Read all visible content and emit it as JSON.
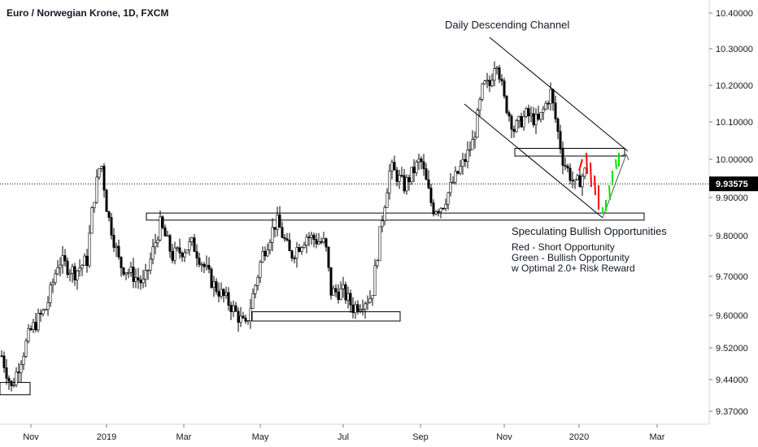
{
  "header": {
    "title": "Euro / Norwegian Krone, 1D, FXCM"
  },
  "colors": {
    "bull": "#ffffff",
    "bear": "#000000",
    "outline": "#000000",
    "short_signal": "#ff0000",
    "long_signal": "#00e600",
    "axis_text": "#131722",
    "price_tag_bg": "#000000"
  },
  "chart_data": {
    "type": "candlestick",
    "title": "Euro / Norwegian Krone, 1D, FXCM",
    "x_ticks": [
      "Nov",
      "2019",
      "Mar",
      "May",
      "Jul",
      "Sep",
      "Nov",
      "2020",
      "Mar"
    ],
    "y_ticks": [
      "10.40000",
      "10.30000",
      "10.20000",
      "10.10000",
      "10.00000",
      "9.90000",
      "9.80000",
      "9.70000",
      "9.60000",
      "9.52000",
      "9.44000",
      "9.37000"
    ],
    "current_price": "9.93575",
    "annotations": {
      "channel_label": "Daily Descending Channel",
      "speculating": "Speculating Bullish Opportunities",
      "legend_lines": [
        "Red - Short Opportunity",
        "Green - Bullish Opportunity",
        "w Optimal 2.0+ Risk Reward"
      ]
    },
    "levels": [
      {
        "name": "support-zone-major",
        "low": 9.845,
        "high": 9.855
      },
      {
        "name": "support-zone-may-jul",
        "low": 9.59,
        "high": 9.605
      },
      {
        "name": "support-zone-oct",
        "low": 9.41,
        "high": 9.43
      },
      {
        "name": "resistance-zone-dec",
        "low": 10.013,
        "high": 10.025
      }
    ],
    "anchors": [
      {
        "t": 0,
        "p": 9.5
      },
      {
        "t": 12,
        "p": 9.42
      },
      {
        "t": 35,
        "p": 9.56
      },
      {
        "t": 55,
        "p": 9.62
      },
      {
        "t": 70,
        "p": 9.74
      },
      {
        "t": 90,
        "p": 9.71
      },
      {
        "t": 105,
        "p": 9.74
      },
      {
        "t": 112,
        "p": 9.88
      },
      {
        "t": 122,
        "p": 10.0
      },
      {
        "t": 130,
        "p": 9.86
      },
      {
        "t": 145,
        "p": 9.73
      },
      {
        "t": 175,
        "p": 9.68
      },
      {
        "t": 195,
        "p": 9.83
      },
      {
        "t": 210,
        "p": 9.75
      },
      {
        "t": 235,
        "p": 9.78
      },
      {
        "t": 260,
        "p": 9.68
      },
      {
        "t": 280,
        "p": 9.63
      },
      {
        "t": 300,
        "p": 9.57
      },
      {
        "t": 320,
        "p": 9.75
      },
      {
        "t": 338,
        "p": 9.84
      },
      {
        "t": 355,
        "p": 9.75
      },
      {
        "t": 375,
        "p": 9.8
      },
      {
        "t": 398,
        "p": 9.78
      },
      {
        "t": 405,
        "p": 9.66
      },
      {
        "t": 420,
        "p": 9.66
      },
      {
        "t": 432,
        "p": 9.62
      },
      {
        "t": 455,
        "p": 9.65
      },
      {
        "t": 468,
        "p": 9.85
      },
      {
        "t": 478,
        "p": 9.98
      },
      {
        "t": 495,
        "p": 9.93
      },
      {
        "t": 515,
        "p": 10.0
      },
      {
        "t": 530,
        "p": 9.87
      },
      {
        "t": 542,
        "p": 9.88
      },
      {
        "t": 555,
        "p": 9.94
      },
      {
        "t": 570,
        "p": 10.0
      },
      {
        "t": 580,
        "p": 10.05
      },
      {
        "t": 592,
        "p": 10.2
      },
      {
        "t": 600,
        "p": 10.2
      },
      {
        "t": 608,
        "p": 10.28
      },
      {
        "t": 618,
        "p": 10.16
      },
      {
        "t": 630,
        "p": 10.08
      },
      {
        "t": 645,
        "p": 10.12
      },
      {
        "t": 660,
        "p": 10.1
      },
      {
        "t": 675,
        "p": 10.18
      },
      {
        "t": 690,
        "p": 10.0
      },
      {
        "t": 705,
        "p": 9.93
      },
      {
        "t": 712,
        "p": 9.95
      },
      {
        "t": 718,
        "p": 9.97
      }
    ]
  }
}
